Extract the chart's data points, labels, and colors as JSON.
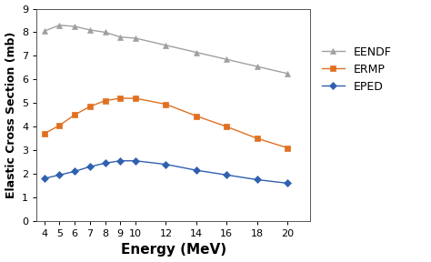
{
  "x": [
    4,
    5,
    6,
    7,
    8,
    9,
    10,
    12,
    14,
    16,
    18,
    20
  ],
  "EENDF": [
    8.05,
    8.3,
    8.25,
    8.1,
    8.0,
    7.8,
    7.75,
    7.45,
    7.15,
    6.85,
    6.55,
    6.25
  ],
  "ERMP": [
    3.7,
    4.05,
    4.5,
    4.85,
    5.1,
    5.2,
    5.2,
    4.95,
    4.45,
    4.0,
    3.5,
    3.1
  ],
  "EPED": [
    1.8,
    1.95,
    2.1,
    2.3,
    2.45,
    2.55,
    2.55,
    2.4,
    2.15,
    1.95,
    1.75,
    1.6
  ],
  "EENDF_color": "#a0a0a0",
  "ERMP_color": "#E07020",
  "EPED_color": "#3060B0",
  "xlabel": "Energy (MeV)",
  "ylabel": "Elastic Cross Section (mb)",
  "ylim": [
    0,
    9
  ],
  "xlim": [
    3.5,
    21.5
  ],
  "xticks": [
    4,
    5,
    6,
    7,
    8,
    9,
    10,
    12,
    14,
    16,
    18,
    20
  ],
  "yticks": [
    0,
    1,
    2,
    3,
    4,
    5,
    6,
    7,
    8,
    9
  ],
  "legend_labels": [
    "EENDF",
    "ERMP",
    "EPED"
  ],
  "background_color": "#ffffff",
  "linewidth": 1.0,
  "markersize": 4,
  "xlabel_fontsize": 11,
  "ylabel_fontsize": 9,
  "tick_fontsize": 8,
  "legend_fontsize": 9
}
